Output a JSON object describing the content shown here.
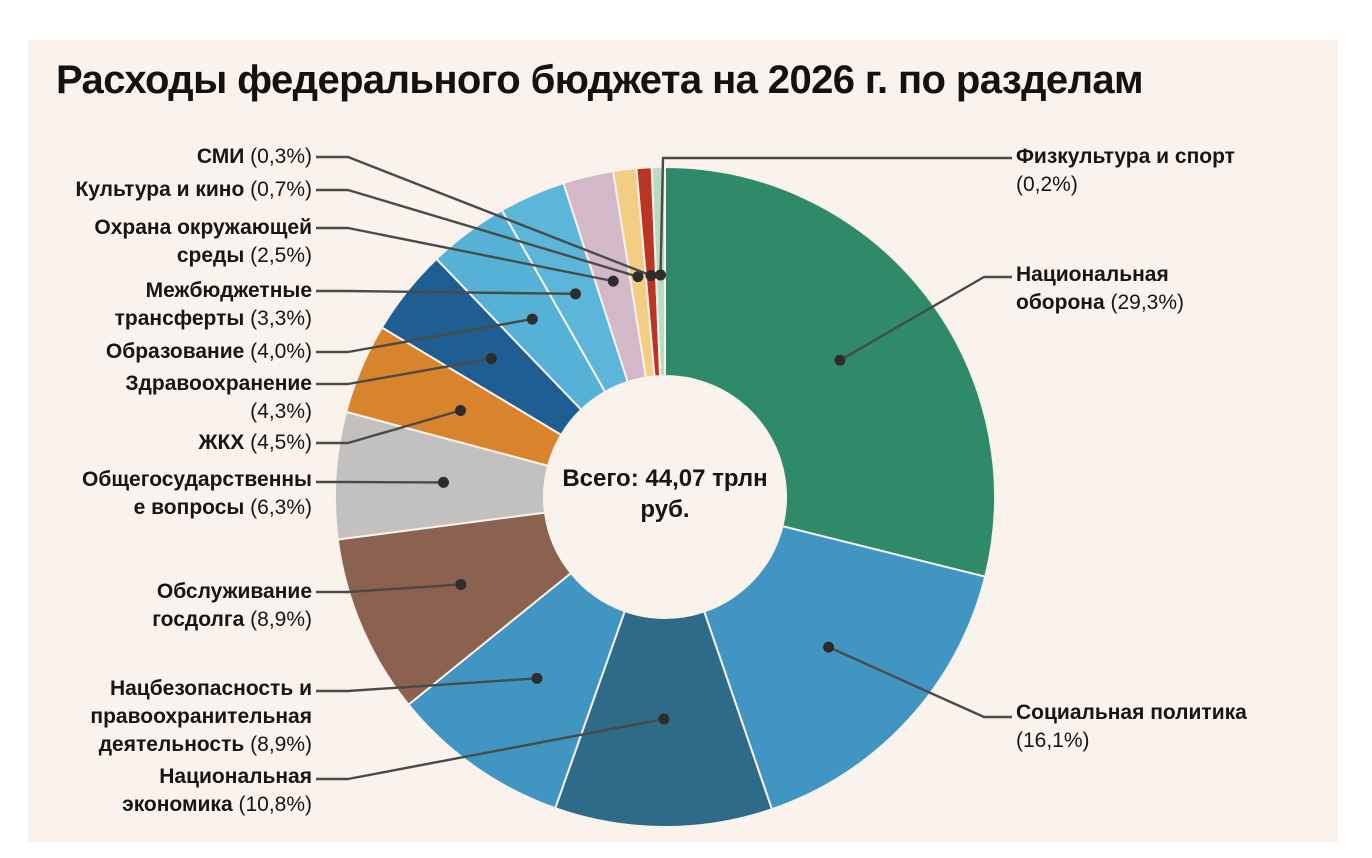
{
  "title": "Расходы федерального бюджета на 2026 г. по разделам",
  "chart_data": {
    "type": "pie",
    "subtype": "donut",
    "title": "Расходы федерального бюджета на 2026 г. по разделам",
    "center_label": "Всего: 44,07 трлн руб.",
    "total": "44,07 трлн руб.",
    "unit": "percent of total",
    "legend_position": "callout-labels",
    "start_angle_deg": 0,
    "direction": "clockwise",
    "slices": [
      {
        "name": "Национальная оборона",
        "value": 29.3,
        "percent_label": "(29,3%)",
        "color": "#2f8a6a",
        "label_lines": [
          "Национальная",
          "оборона (29,3%)"
        ]
      },
      {
        "name": "Социальная политика",
        "value": 16.1,
        "percent_label": "(16,1%)",
        "color": "#4095c3",
        "label_lines": [
          "Социальная политика",
          "(16,1%)"
        ]
      },
      {
        "name": "Национальная экономика",
        "value": 10.8,
        "percent_label": "(10,8%)",
        "color": "#2d6b88",
        "label_lines": [
          "Национальная",
          "экономика (10,8%)"
        ]
      },
      {
        "name": "Нацбезопасность и правоохранительная деятельность",
        "value": 8.9,
        "percent_label": "(8,9%)",
        "color": "#4095c3",
        "label_lines": [
          "Нацбезопасность и",
          "правоохранительная",
          "деятельность (8,9%)"
        ]
      },
      {
        "name": "Обслуживание госдолга",
        "value": 8.9,
        "percent_label": "(8,9%)",
        "color": "#8b6150",
        "label_lines": [
          "Обслуживание",
          "госдолга (8,9%)"
        ]
      },
      {
        "name": "Общегосударственные вопросы",
        "value": 6.3,
        "percent_label": "(6,3%)",
        "color": "#c2c1c0",
        "label_lines": [
          "Общегосударственны",
          "е вопросы (6,3%)"
        ]
      },
      {
        "name": "ЖКХ",
        "value": 4.5,
        "percent_label": "(4,5%)",
        "color": "#d8842c",
        "label_lines": [
          "ЖКХ (4,5%)"
        ]
      },
      {
        "name": "Здравоохранение",
        "value": 4.3,
        "percent_label": "(4,3%)",
        "color": "#1f5e92",
        "label_lines": [
          "Здравоохранение",
          "(4,3%)"
        ]
      },
      {
        "name": "Образование",
        "value": 4.0,
        "percent_label": "(4,0%)",
        "color": "#56b1d7",
        "label_lines": [
          "Образование (4,0%)"
        ]
      },
      {
        "name": "Межбюджетные трансферты",
        "value": 3.3,
        "percent_label": "(3,3%)",
        "color": "#5cb6da",
        "label_lines": [
          "Межбюджетные",
          "трансферты (3,3%)"
        ]
      },
      {
        "name": "Охрана окружающей среды",
        "value": 2.5,
        "percent_label": "(2,5%)",
        "color": "#d3b9c8",
        "label_lines": [
          "Охрана окружающей",
          "среды (2,5%)"
        ]
      },
      {
        "name": "Культура и кино",
        "value": 0.7,
        "percent_label": "(0,7%)",
        "color": "#f4cd84",
        "label_lines": [
          "Культура и кино (0,7%)"
        ]
      },
      {
        "name": "СМИ",
        "value": 0.3,
        "percent_label": "(0,3%)",
        "color": "#bb3524",
        "label_lines": [
          "СМИ (0,3%)"
        ]
      },
      {
        "name": "Физкультура и спорт",
        "value": 0.2,
        "percent_label": "(0,2%)",
        "color": "#b9dcc4",
        "label_lines": [
          "Физкультура и спорт",
          "(0,2%)"
        ]
      }
    ]
  }
}
